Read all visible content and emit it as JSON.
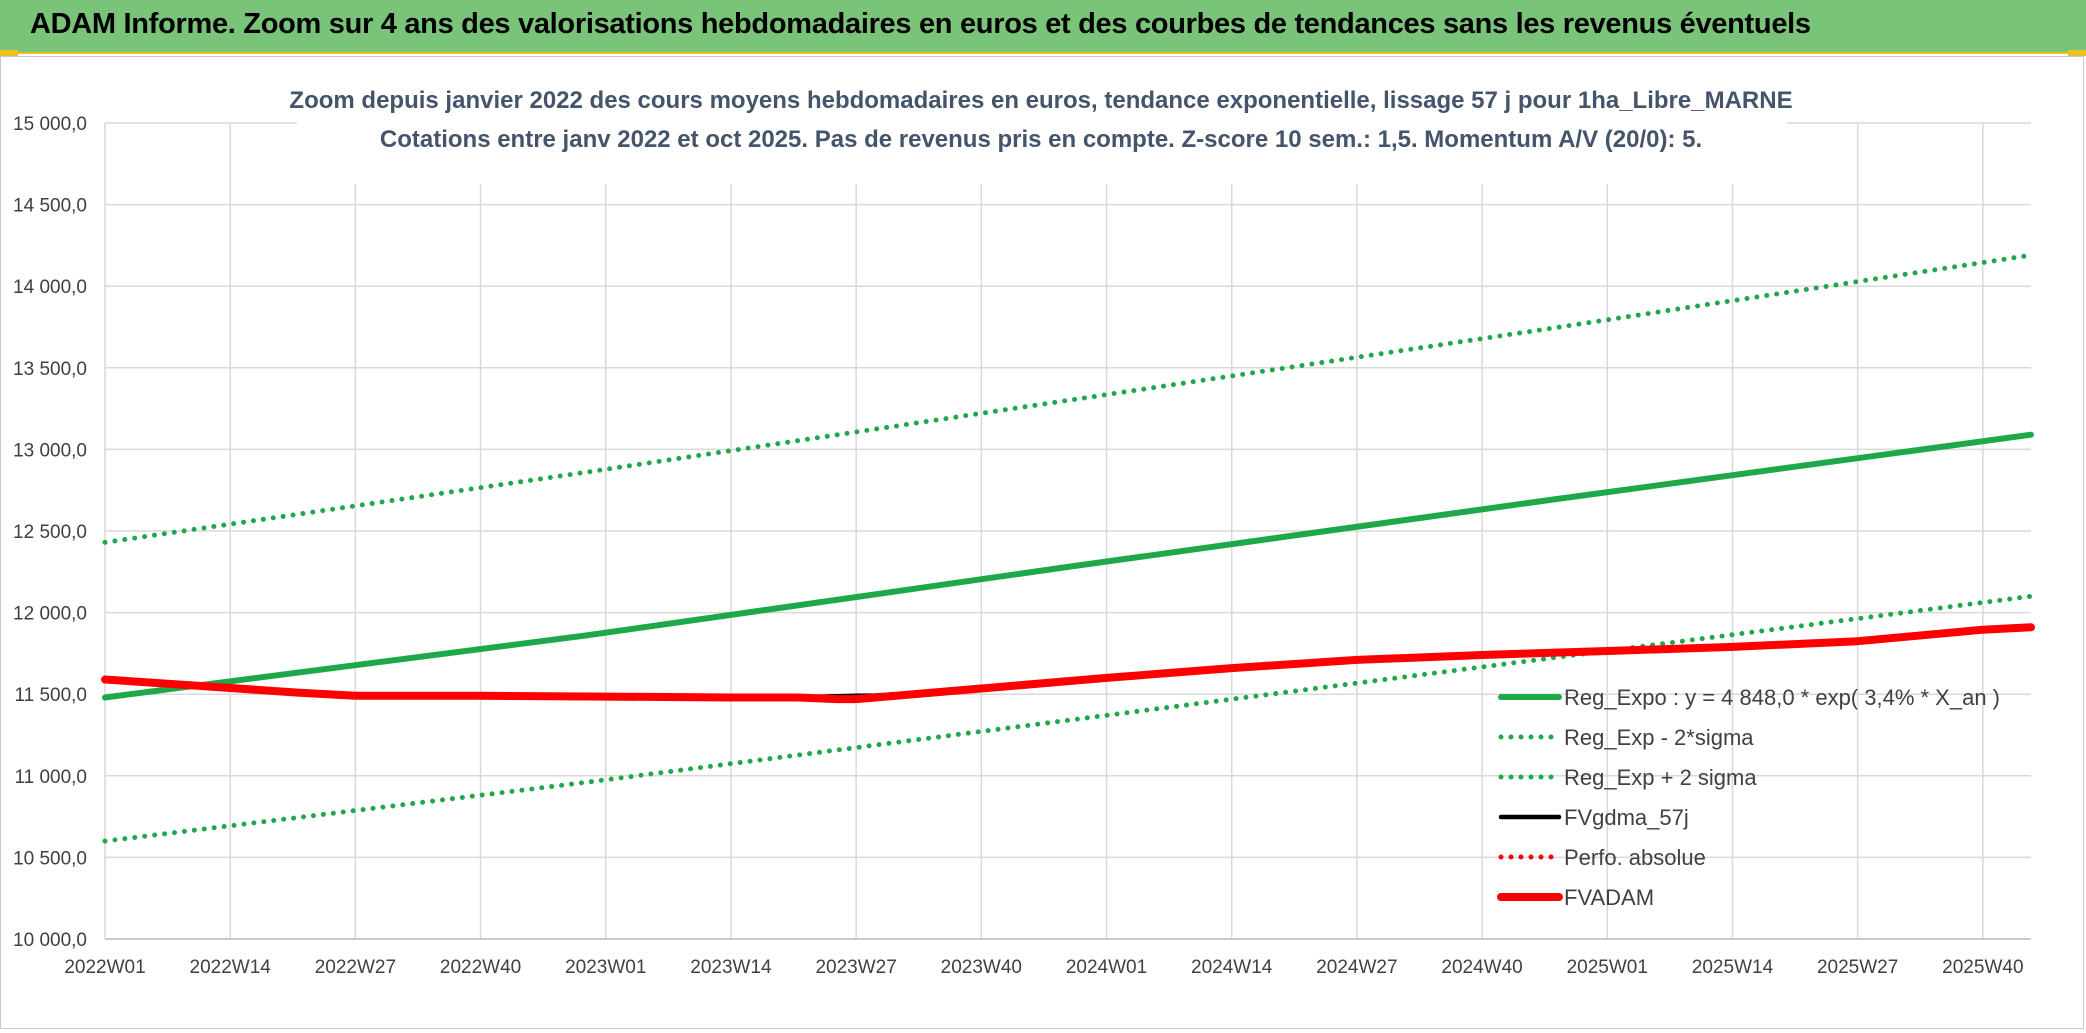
{
  "banner": {
    "title": "ADAM Informe. Zoom sur 4 ans des valorisations hebdomadaires en euros et des courbes de tendances sans les revenus éventuels",
    "background": "#7ac47a"
  },
  "chart_data": {
    "type": "line",
    "title_line1": "Zoom depuis janvier 2022 des cours moyens hebdomadaires en euros, tendance exponentielle, lissage 57 j pour 1ha_Libre_MARNE",
    "title_line2": "Cotations entre janv 2022 et oct 2025. Pas de revenus pris en compte. Z-score 10 sem.: 1,5. Momentum A/V (20/0): 5.",
    "xlabel": "",
    "ylabel": "",
    "ylim": [
      10000,
      15000
    ],
    "y_ticks": [
      "15 000,0",
      "14 500,0",
      "14 000,0",
      "13 500,0",
      "13 000,0",
      "12 500,0",
      "12 000,0",
      "11 500,0",
      "11 000,0",
      "10 500,0",
      "10 000,0"
    ],
    "y_tick_values": [
      15000,
      14500,
      14000,
      13500,
      13000,
      12500,
      12000,
      11500,
      11000,
      10500,
      10000
    ],
    "x_ticks": [
      "2022W01",
      "2022W14",
      "2022W27",
      "2022W40",
      "2023W01",
      "2023W14",
      "2023W27",
      "2023W40",
      "2024W01",
      "2024W14",
      "2024W27",
      "2024W40",
      "2025W01",
      "2025W14",
      "2025W27",
      "2025W40"
    ],
    "x_tick_weeks": [
      0,
      13,
      26,
      39,
      52,
      65,
      78,
      91,
      104,
      117,
      130,
      143,
      156,
      169,
      182,
      195
    ],
    "x_range_weeks": [
      0,
      200
    ],
    "grid": true,
    "legend_position": "bottom-right",
    "series": [
      {
        "name": "Reg_Expo : y = 4 848,0 * exp( 3,4% *  X_an )",
        "color": "#1fa84a",
        "style": "solid",
        "weeks": [
          0,
          50,
          100,
          150,
          200
        ],
        "values": [
          11480,
          11860,
          12280,
          12690,
          13090
        ]
      },
      {
        "name": "Reg_Exp - 2*sigma",
        "color": "#1fa84a",
        "style": "dotted",
        "weeks": [
          0,
          50,
          100,
          150,
          200
        ],
        "values": [
          10600,
          10960,
          11340,
          11720,
          12100
        ]
      },
      {
        "name": "Reg_Exp + 2 sigma",
        "color": "#1fa84a",
        "style": "dotted",
        "weeks": [
          0,
          50,
          100,
          150,
          200
        ],
        "values": [
          12430,
          12860,
          13300,
          13740,
          14190
        ]
      },
      {
        "name": "FVgdma_57j",
        "color": "#000000",
        "style": "solid",
        "weeks": [
          0,
          10,
          20,
          26,
          39,
          52,
          65,
          72,
          76,
          78,
          80,
          85,
          91,
          104,
          117,
          130,
          143,
          156,
          169,
          182,
          195,
          200
        ],
        "values": [
          11590,
          11550,
          11510,
          11490,
          11490,
          11485,
          11480,
          11482,
          11488,
          11490,
          11492,
          11510,
          11540,
          11600,
          11660,
          11710,
          11740,
          11765,
          11790,
          11830,
          11895,
          11910
        ]
      },
      {
        "name": "Perfo. absolue",
        "color": "#ff0000",
        "style": "dotted",
        "weeks": [],
        "values": []
      },
      {
        "name": "FVADAM",
        "color": "#ff0000",
        "style": "solid-thick",
        "weeks": [
          0,
          10,
          20,
          26,
          39,
          52,
          65,
          72,
          76,
          78,
          80,
          85,
          91,
          104,
          117,
          130,
          143,
          156,
          169,
          182,
          195,
          200
        ],
        "values": [
          11590,
          11550,
          11510,
          11490,
          11490,
          11485,
          11480,
          11480,
          11470,
          11470,
          11480,
          11505,
          11535,
          11600,
          11660,
          11710,
          11740,
          11765,
          11790,
          11825,
          11895,
          11910
        ]
      }
    ]
  }
}
